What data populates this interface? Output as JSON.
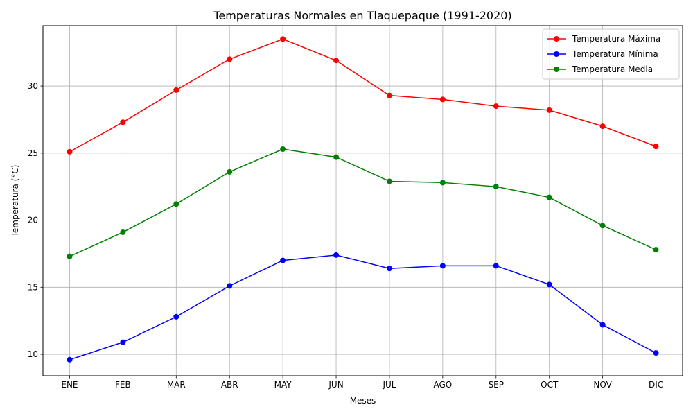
{
  "chart_data": {
    "type": "line",
    "title": "Temperaturas Normales en Tlaquepaque (1991-2020)",
    "xlabel": "Meses",
    "ylabel": "Temperatura (°C)",
    "categories": [
      "ENE",
      "FEB",
      "MAR",
      "ABR",
      "MAY",
      "JUN",
      "JUL",
      "AGO",
      "SEP",
      "OCT",
      "NOV",
      "DIC"
    ],
    "ylim": [
      8.4,
      34.5
    ],
    "yticks": [
      10,
      15,
      20,
      25,
      30
    ],
    "grid": true,
    "legend_position": "top-right",
    "series": [
      {
        "name": "Temperatura Máxima",
        "color": "#ff0000",
        "marker": "circle",
        "values": [
          25.1,
          27.3,
          29.7,
          32.0,
          33.5,
          31.9,
          29.3,
          29.0,
          28.5,
          28.2,
          27.0,
          25.5
        ]
      },
      {
        "name": "Temperatura Mínima",
        "color": "#0000ff",
        "marker": "circle",
        "values": [
          9.6,
          10.9,
          12.8,
          15.1,
          17.0,
          17.4,
          16.4,
          16.6,
          16.6,
          15.2,
          12.2,
          10.1
        ]
      },
      {
        "name": "Temperatura Media",
        "color": "#008000",
        "marker": "circle",
        "values": [
          17.3,
          19.1,
          21.2,
          23.6,
          25.3,
          24.7,
          22.9,
          22.8,
          22.5,
          21.7,
          19.6,
          17.8
        ]
      }
    ]
  }
}
